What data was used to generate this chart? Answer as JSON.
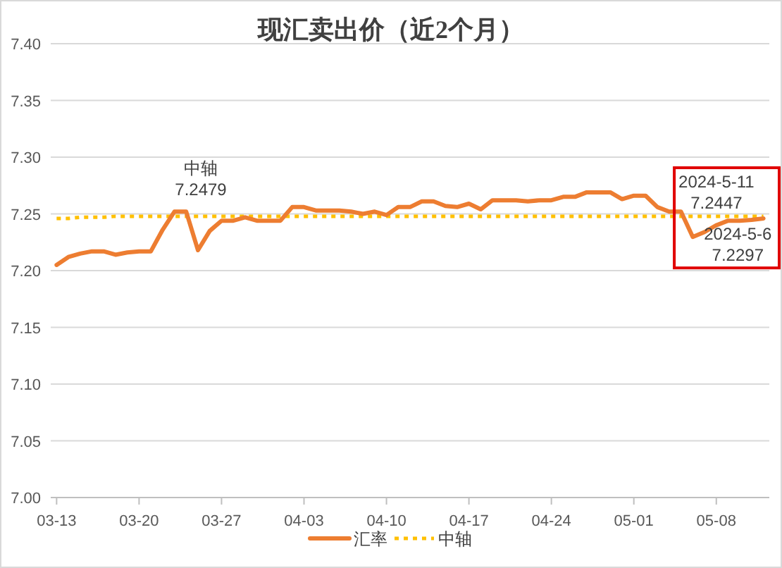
{
  "chart_data": {
    "type": "line",
    "title": "现汇卖出价（近2个月）",
    "x": [
      "2024-03-13",
      "2024-03-14",
      "2024-03-15",
      "2024-03-16",
      "2024-03-17",
      "2024-03-18",
      "2024-03-19",
      "2024-03-20",
      "2024-03-21",
      "2024-03-22",
      "2024-03-23",
      "2024-03-24",
      "2024-03-25",
      "2024-03-26",
      "2024-03-27",
      "2024-03-28",
      "2024-03-29",
      "2024-03-30",
      "2024-03-31",
      "2024-04-01",
      "2024-04-02",
      "2024-04-03",
      "2024-04-04",
      "2024-04-05",
      "2024-04-06",
      "2024-04-07",
      "2024-04-08",
      "2024-04-09",
      "2024-04-10",
      "2024-04-11",
      "2024-04-12",
      "2024-04-13",
      "2024-04-14",
      "2024-04-15",
      "2024-04-16",
      "2024-04-17",
      "2024-04-18",
      "2024-04-19",
      "2024-04-20",
      "2024-04-21",
      "2024-04-22",
      "2024-04-23",
      "2024-04-24",
      "2024-04-25",
      "2024-04-26",
      "2024-04-27",
      "2024-04-28",
      "2024-04-29",
      "2024-04-30",
      "2024-05-01",
      "2024-05-02",
      "2024-05-03",
      "2024-05-04",
      "2024-05-05",
      "2024-05-06",
      "2024-05-07",
      "2024-05-08",
      "2024-05-09",
      "2024-05-10",
      "2024-05-11",
      "2024-05-12"
    ],
    "series": [
      {
        "name": "汇率",
        "color": "#ed7d31",
        "line_style": "solid",
        "values": [
          7.205,
          7.212,
          7.215,
          7.217,
          7.217,
          7.214,
          7.216,
          7.217,
          7.217,
          7.236,
          7.252,
          7.252,
          7.218,
          7.235,
          7.244,
          7.244,
          7.247,
          7.244,
          7.244,
          7.244,
          7.256,
          7.256,
          7.253,
          7.253,
          7.253,
          7.252,
          7.25,
          7.252,
          7.249,
          7.256,
          7.256,
          7.261,
          7.261,
          7.257,
          7.256,
          7.259,
          7.254,
          7.262,
          7.262,
          7.262,
          7.261,
          7.262,
          7.262,
          7.265,
          7.265,
          7.269,
          7.269,
          7.269,
          7.263,
          7.266,
          7.266,
          7.256,
          7.252,
          7.252,
          7.2297,
          7.234,
          7.24,
          7.244,
          7.244,
          7.2447,
          7.246
        ]
      },
      {
        "name": "中轴",
        "color": "#ffc000",
        "line_style": "dotted",
        "values": [
          7.246,
          7.246,
          7.247,
          7.247,
          7.247,
          7.2479,
          7.2479,
          7.2479,
          7.2479,
          7.2479,
          7.2479,
          7.2479,
          7.2479,
          7.2479,
          7.2479,
          7.2479,
          7.2479,
          7.2479,
          7.2479,
          7.2479,
          7.2479,
          7.2479,
          7.2479,
          7.2479,
          7.2479,
          7.2479,
          7.2479,
          7.2479,
          7.2479,
          7.2479,
          7.2479,
          7.2479,
          7.2479,
          7.2479,
          7.2479,
          7.2479,
          7.2479,
          7.2479,
          7.2479,
          7.2479,
          7.2479,
          7.2479,
          7.2479,
          7.2479,
          7.2479,
          7.2479,
          7.2479,
          7.2479,
          7.2479,
          7.2479,
          7.2479,
          7.2479,
          7.2479,
          7.2479,
          7.2479,
          7.2479,
          7.2479,
          7.2479,
          7.2479,
          7.2479,
          7.2479
        ]
      }
    ],
    "xlim": [
      "2024-03-12T12:00",
      "2024-05-12T12:00"
    ],
    "xticks": [
      {
        "value": "2024-03-13",
        "label": "03-13"
      },
      {
        "value": "2024-03-20",
        "label": "03-20"
      },
      {
        "value": "2024-03-27",
        "label": "03-27"
      },
      {
        "value": "2024-04-03",
        "label": "04-03"
      },
      {
        "value": "2024-04-10",
        "label": "04-10"
      },
      {
        "value": "2024-04-17",
        "label": "04-17"
      },
      {
        "value": "2024-04-24",
        "label": "04-24"
      },
      {
        "value": "2024-05-01",
        "label": "05-01"
      },
      {
        "value": "2024-05-08",
        "label": "05-08"
      }
    ],
    "ylim": [
      7,
      7.4
    ],
    "yticks": [
      {
        "value": 7,
        "label": "7.00"
      },
      7.05,
      {
        "value": 7.1,
        "label": "7.10"
      },
      7.15,
      {
        "value": 7.2,
        "label": "7.20"
      },
      7.25,
      {
        "value": 7.3,
        "label": "7.30"
      },
      7.35,
      {
        "value": 7.4,
        "label": "7.40"
      }
    ],
    "grid": "y",
    "legend": "bottom",
    "marker": "none",
    "annotations": [
      {
        "text": "中轴 7.2479",
        "x": "2024-03-25",
        "y": 7.2479
      },
      {
        "text": "2024-5-11 7.2447",
        "x": "2024-05-11",
        "y": 7.2447
      },
      {
        "text": "2024-5-6 7.2297",
        "x": "2024-05-06",
        "y": 7.2297
      }
    ]
  }
}
